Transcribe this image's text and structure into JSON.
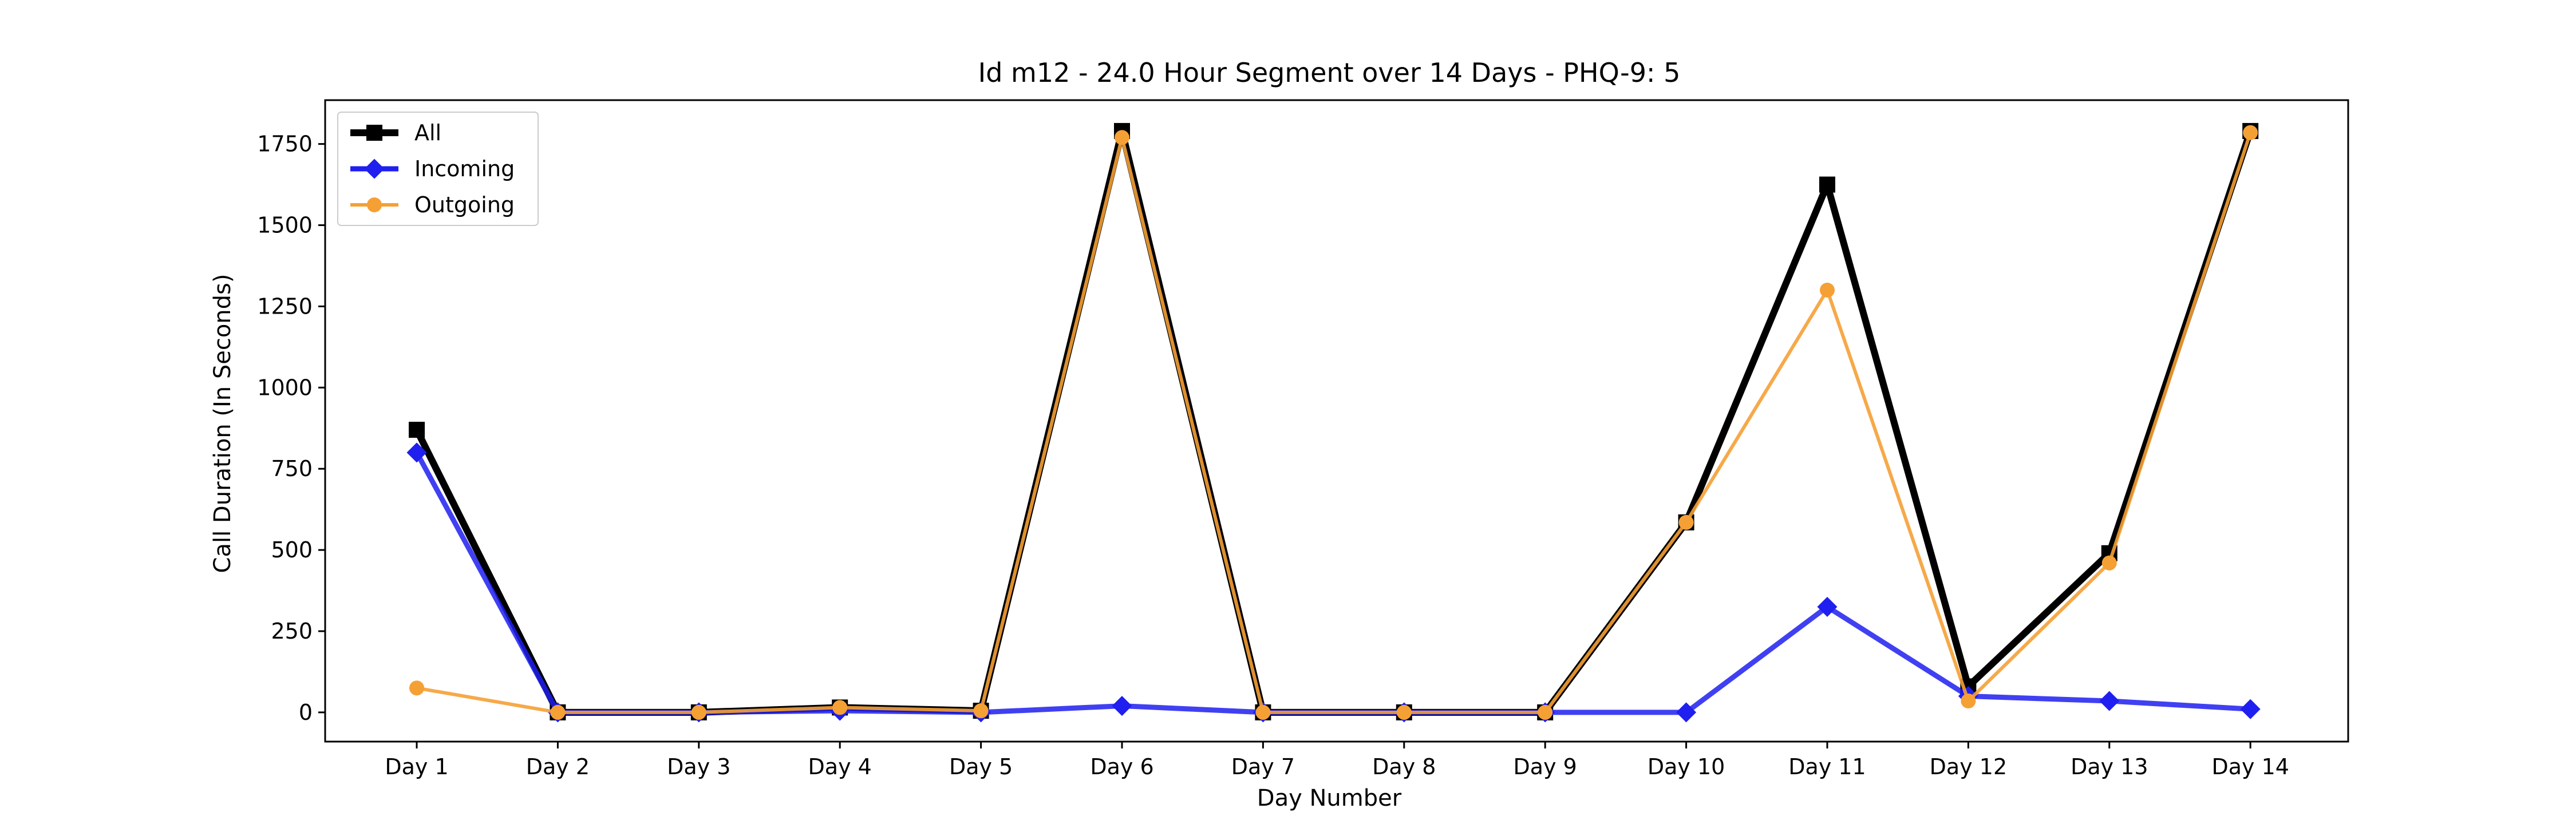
{
  "chart_data": {
    "type": "line",
    "title": "Id m12 - 24.0 Hour Segment over 14 Days - PHQ-9: 5",
    "xlabel": "Day Number",
    "ylabel": "Call Duration (In Seconds)",
    "categories": [
      "Day 1",
      "Day 2",
      "Day 3",
      "Day 4",
      "Day 5",
      "Day 6",
      "Day 7",
      "Day 8",
      "Day 9",
      "Day 10",
      "Day 11",
      "Day 12",
      "Day 13",
      "Day 14"
    ],
    "ylim": [
      -90,
      1885
    ],
    "yticks": [
      0,
      250,
      500,
      750,
      1000,
      1250,
      1500,
      1750
    ],
    "grid": false,
    "legend_position": "top-left",
    "series": [
      {
        "name": "All",
        "color": "#000000",
        "marker": "square",
        "values": [
          870,
          0,
          0,
          15,
          5,
          1790,
          0,
          0,
          0,
          585,
          1625,
          80,
          490,
          1790
        ]
      },
      {
        "name": "Incoming",
        "color": "#1f1ff0",
        "marker": "diamond",
        "values": [
          800,
          0,
          0,
          5,
          0,
          20,
          0,
          0,
          0,
          0,
          325,
          50,
          35,
          10
        ]
      },
      {
        "name": "Outgoing",
        "color": "#f5a035",
        "marker": "circle",
        "values": [
          75,
          0,
          0,
          15,
          5,
          1770,
          0,
          0,
          0,
          585,
          1300,
          35,
          460,
          1785
        ]
      }
    ]
  }
}
